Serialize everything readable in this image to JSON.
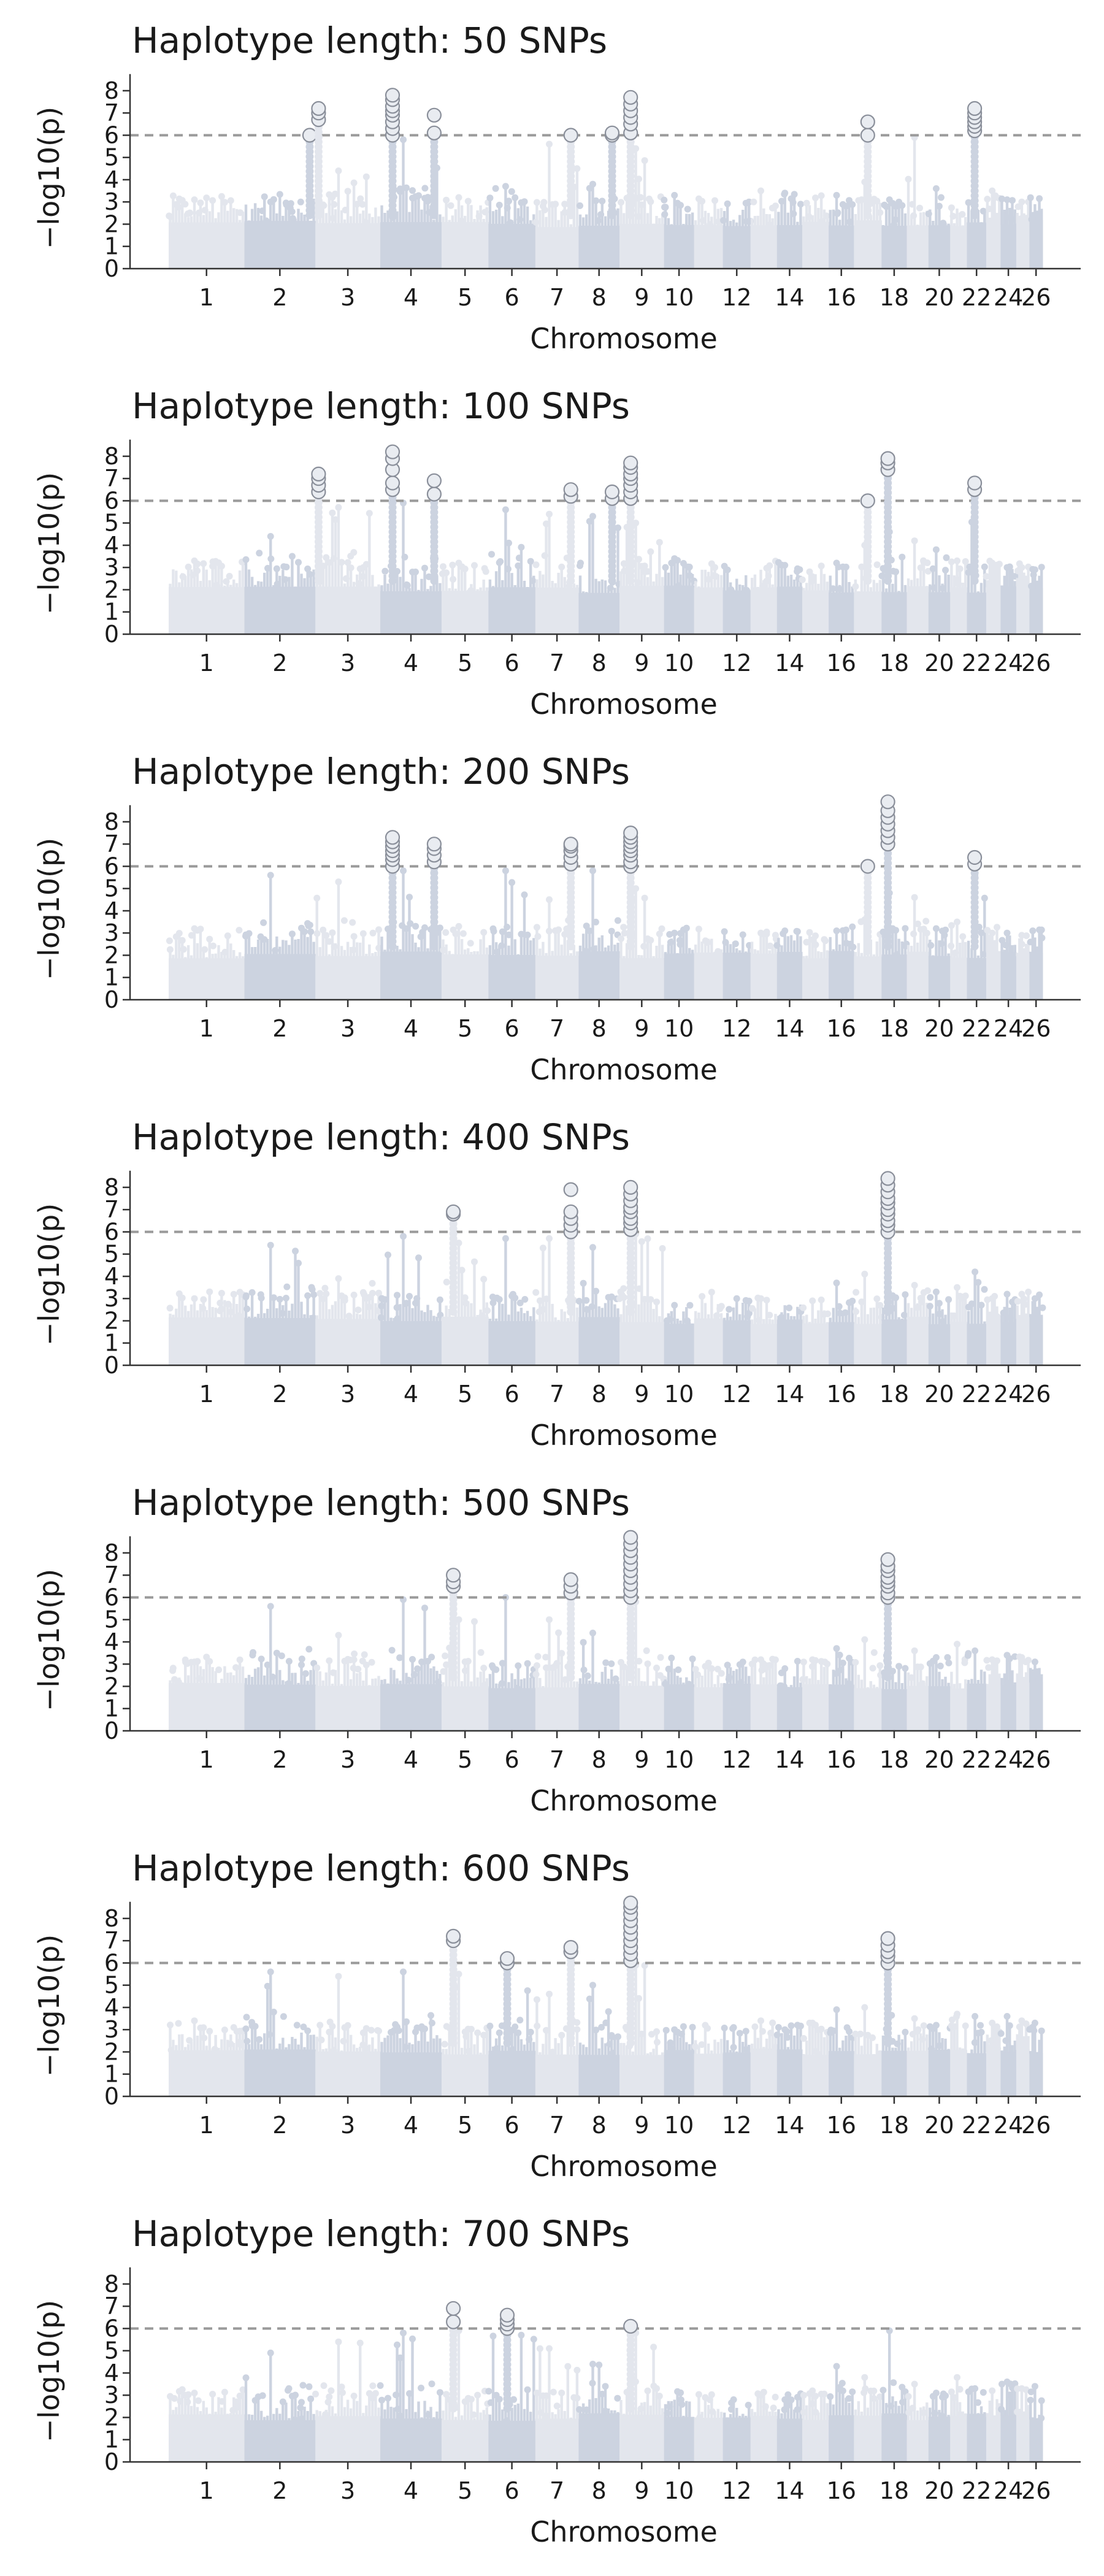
{
  "figure": {
    "colors": {
      "chrom_odd": "#e3e6ed",
      "chrom_even": "#ccd3e0",
      "threshold": "#9a9a9a",
      "hit_fill": "#e9ecf1",
      "hit_stroke": "#8a8f9a",
      "axis": "#333333",
      "text": "#1a1a1a"
    }
  },
  "chart_data": [
    {
      "type": "scatter",
      "title": "Haplotype length: 50 SNPs",
      "xlabel": "Chromosome",
      "ylabel": "−log10(p)",
      "ylim": [
        0,
        9
      ],
      "yticks": [
        0,
        1,
        2,
        3,
        4,
        5,
        6,
        7,
        8
      ],
      "threshold": 6,
      "chromosome_tick_labels": [
        "1",
        "2",
        "3",
        "4",
        "5",
        "6",
        "7",
        "8",
        "9",
        "10",
        "12",
        "14",
        "16",
        "18",
        "20",
        "22",
        "24",
        "26"
      ],
      "background_peaks": [
        3.1,
        3.0,
        4.4,
        5.8,
        3.2,
        3.7,
        5.6,
        3.8,
        5.4,
        3.3,
        2.6,
        2.2,
        3.5,
        3.4,
        2.4,
        3.3,
        3.9,
        3.1,
        5.9,
        3.6,
        2.7,
        3.1,
        3.5,
        3.1,
        3.0,
        2.9
      ],
      "significant_hits": [
        {
          "chr": 2,
          "pos": 0.92,
          "values": [
            6.0
          ]
        },
        {
          "chr": 3,
          "pos": 0.05,
          "values": [
            6.7,
            7.0,
            7.2
          ]
        },
        {
          "chr": 4,
          "pos": 0.2,
          "values": [
            6.0,
            6.3,
            6.6,
            6.9,
            7.1,
            7.3,
            7.6,
            7.8
          ]
        },
        {
          "chr": 4,
          "pos": 0.88,
          "values": [
            6.1,
            6.9
          ]
        },
        {
          "chr": 7,
          "pos": 0.82,
          "values": [
            6.0
          ]
        },
        {
          "chr": 8,
          "pos": 0.82,
          "values": [
            6.0,
            6.1
          ]
        },
        {
          "chr": 9,
          "pos": 0.25,
          "values": [
            6.1,
            6.5,
            6.8,
            7.1,
            7.4,
            7.7
          ]
        },
        {
          "chr": 17,
          "pos": 0.5,
          "values": [
            6.0,
            6.6
          ]
        },
        {
          "chr": 22,
          "pos": 0.4,
          "values": [
            6.2,
            6.4,
            6.6,
            6.8,
            7.0,
            7.2
          ]
        }
      ]
    },
    {
      "type": "scatter",
      "title": "Haplotype length: 100 SNPs",
      "xlabel": "Chromosome",
      "ylabel": "−log10(p)",
      "ylim": [
        0,
        9
      ],
      "yticks": [
        0,
        1,
        2,
        3,
        4,
        5,
        6,
        7,
        8
      ],
      "threshold": 6,
      "chromosome_tick_labels": [
        "1",
        "2",
        "3",
        "4",
        "5",
        "6",
        "7",
        "8",
        "9",
        "10",
        "12",
        "14",
        "16",
        "18",
        "20",
        "22",
        "24",
        "26"
      ],
      "background_peaks": [
        3.3,
        4.4,
        5.7,
        5.9,
        3.2,
        5.6,
        5.4,
        5.3,
        5.0,
        3.4,
        2.9,
        2.0,
        2.9,
        3.1,
        2.6,
        3.2,
        4.0,
        4.6,
        4.2,
        3.8,
        3.3,
        5.9,
        3.2,
        3.0,
        3.0,
        2.9
      ],
      "significant_hits": [
        {
          "chr": 3,
          "pos": 0.05,
          "values": [
            6.4,
            6.7,
            7.0,
            7.2
          ]
        },
        {
          "chr": 4,
          "pos": 0.2,
          "values": [
            6.5,
            6.8,
            7.4,
            7.9,
            8.2
          ]
        },
        {
          "chr": 4,
          "pos": 0.88,
          "values": [
            6.3,
            6.9
          ]
        },
        {
          "chr": 7,
          "pos": 0.82,
          "values": [
            6.2,
            6.5
          ]
        },
        {
          "chr": 8,
          "pos": 0.82,
          "values": [
            6.1,
            6.4
          ]
        },
        {
          "chr": 9,
          "pos": 0.25,
          "values": [
            6.1,
            6.4,
            6.7,
            7.0,
            7.2,
            7.5,
            7.7
          ]
        },
        {
          "chr": 17,
          "pos": 0.5,
          "values": [
            6.0
          ]
        },
        {
          "chr": 18,
          "pos": 0.25,
          "values": [
            7.4,
            7.7,
            7.9
          ]
        },
        {
          "chr": 22,
          "pos": 0.4,
          "values": [
            6.5,
            6.8
          ]
        }
      ]
    },
    {
      "type": "scatter",
      "title": "Haplotype length: 200 SNPs",
      "xlabel": "Chromosome",
      "ylabel": "−log10(p)",
      "ylim": [
        0,
        9
      ],
      "yticks": [
        0,
        1,
        2,
        3,
        4,
        5,
        6,
        7,
        8
      ],
      "threshold": 6,
      "chromosome_tick_labels": [
        "1",
        "2",
        "3",
        "4",
        "5",
        "6",
        "7",
        "8",
        "9",
        "10",
        "12",
        "14",
        "16",
        "18",
        "20",
        "22",
        "24",
        "26"
      ],
      "background_peaks": [
        3.2,
        5.6,
        5.3,
        5.8,
        3.3,
        5.8,
        4.5,
        5.8,
        5.0,
        3.0,
        2.8,
        2.6,
        3.0,
        3.1,
        2.7,
        3.1,
        3.6,
        4.8,
        4.6,
        3.2,
        3.5,
        5.6,
        3.0,
        3.0,
        2.9,
        2.8
      ],
      "significant_hits": [
        {
          "chr": 4,
          "pos": 0.2,
          "values": [
            6.0,
            6.3,
            6.5,
            6.7,
            6.9,
            7.1,
            7.3
          ]
        },
        {
          "chr": 4,
          "pos": 0.88,
          "values": [
            6.2,
            6.5,
            6.8,
            7.0
          ]
        },
        {
          "chr": 7,
          "pos": 0.82,
          "values": [
            6.1,
            6.4,
            6.7,
            6.9,
            7.0
          ]
        },
        {
          "chr": 9,
          "pos": 0.25,
          "values": [
            6.0,
            6.2,
            6.5,
            6.7,
            6.9,
            7.1,
            7.3,
            7.5
          ]
        },
        {
          "chr": 17,
          "pos": 0.5,
          "values": [
            6.0
          ]
        },
        {
          "chr": 18,
          "pos": 0.25,
          "values": [
            7.0,
            7.3,
            7.6,
            7.9,
            8.2,
            8.5,
            8.9
          ]
        },
        {
          "chr": 22,
          "pos": 0.4,
          "values": [
            6.1,
            6.4
          ]
        }
      ]
    },
    {
      "type": "scatter",
      "title": "Haplotype length: 400 SNPs",
      "xlabel": "Chromosome",
      "ylabel": "−log10(p)",
      "ylim": [
        0,
        9
      ],
      "yticks": [
        0,
        1,
        2,
        3,
        4,
        5,
        6,
        7,
        8
      ],
      "threshold": 6,
      "chromosome_tick_labels": [
        "1",
        "2",
        "3",
        "4",
        "5",
        "6",
        "7",
        "8",
        "9",
        "10",
        "12",
        "14",
        "16",
        "18",
        "20",
        "22",
        "24",
        "26"
      ],
      "background_peaks": [
        3.0,
        5.4,
        3.9,
        5.8,
        5.5,
        5.7,
        5.7,
        5.3,
        5.9,
        2.7,
        2.8,
        2.6,
        3.0,
        2.7,
        2.9,
        3.7,
        4.1,
        5.9,
        3.6,
        3.3,
        3.5,
        4.2,
        3.0,
        3.2,
        3.2,
        3.0
      ],
      "significant_hits": [
        {
          "chr": 5,
          "pos": 0.25,
          "values": [
            6.8,
            6.9
          ]
        },
        {
          "chr": 7,
          "pos": 0.82,
          "values": [
            6.0,
            6.3,
            6.6,
            6.9,
            7.9
          ]
        },
        {
          "chr": 9,
          "pos": 0.25,
          "values": [
            6.1,
            6.4,
            6.6,
            6.9,
            7.1,
            7.4,
            7.7,
            8.0
          ]
        },
        {
          "chr": 18,
          "pos": 0.25,
          "values": [
            6.0,
            6.3,
            6.5,
            6.8,
            7.0,
            7.3,
            7.5,
            7.8,
            8.1,
            8.4
          ]
        }
      ]
    },
    {
      "type": "scatter",
      "title": "Haplotype length: 500 SNPs",
      "xlabel": "Chromosome",
      "ylabel": "−log10(p)",
      "ylim": [
        0,
        9
      ],
      "yticks": [
        0,
        1,
        2,
        3,
        4,
        5,
        6,
        7,
        8
      ],
      "threshold": 6,
      "chromosome_tick_labels": [
        "1",
        "2",
        "3",
        "4",
        "5",
        "6",
        "7",
        "8",
        "9",
        "10",
        "12",
        "14",
        "16",
        "18",
        "20",
        "22",
        "24",
        "26"
      ],
      "background_peaks": [
        3.1,
        5.6,
        4.3,
        5.9,
        5.0,
        6.0,
        5.0,
        4.4,
        5.8,
        2.8,
        2.9,
        2.7,
        3.2,
        2.8,
        3.2,
        3.7,
        4.1,
        5.9,
        3.6,
        3.3,
        3.9,
        3.6,
        3.2,
        3.4,
        3.3,
        3.1
      ],
      "significant_hits": [
        {
          "chr": 5,
          "pos": 0.25,
          "values": [
            6.5,
            6.7,
            7.0
          ]
        },
        {
          "chr": 7,
          "pos": 0.82,
          "values": [
            6.2,
            6.5,
            6.8
          ]
        },
        {
          "chr": 9,
          "pos": 0.25,
          "values": [
            6.0,
            6.3,
            6.6,
            6.9,
            7.2,
            7.5,
            7.8,
            8.1,
            8.4,
            8.7
          ]
        },
        {
          "chr": 18,
          "pos": 0.25,
          "values": [
            6.0,
            6.2,
            6.5,
            6.7,
            6.9,
            7.2,
            7.4,
            7.7
          ]
        }
      ]
    },
    {
      "type": "scatter",
      "title": "Haplotype length: 600 SNPs",
      "xlabel": "Chromosome",
      "ylabel": "−log10(p)",
      "ylim": [
        0,
        9
      ],
      "yticks": [
        0,
        1,
        2,
        3,
        4,
        5,
        6,
        7,
        8
      ],
      "threshold": 6,
      "chromosome_tick_labels": [
        "1",
        "2",
        "3",
        "4",
        "5",
        "6",
        "7",
        "8",
        "9",
        "10",
        "12",
        "14",
        "16",
        "18",
        "20",
        "22",
        "24",
        "26"
      ],
      "background_peaks": [
        3.4,
        5.6,
        5.4,
        5.6,
        5.5,
        5.9,
        4.6,
        5.0,
        5.9,
        3.0,
        3.2,
        3.1,
        3.4,
        3.0,
        3.3,
        3.9,
        4.0,
        5.9,
        3.5,
        3.2,
        3.7,
        3.6,
        3.3,
        3.6,
        3.4,
        3.3
      ],
      "significant_hits": [
        {
          "chr": 5,
          "pos": 0.25,
          "values": [
            7.0,
            7.2
          ]
        },
        {
          "chr": 6,
          "pos": 0.4,
          "values": [
            6.0,
            6.2
          ]
        },
        {
          "chr": 7,
          "pos": 0.82,
          "values": [
            6.5,
            6.7
          ]
        },
        {
          "chr": 9,
          "pos": 0.25,
          "values": [
            6.1,
            6.4,
            6.7,
            7.0,
            7.3,
            7.6,
            7.9,
            8.2,
            8.5,
            8.7
          ]
        },
        {
          "chr": 18,
          "pos": 0.25,
          "values": [
            6.0,
            6.3,
            6.5,
            6.8,
            7.1
          ]
        }
      ]
    },
    {
      "type": "scatter",
      "title": "Haplotype length: 700 SNPs",
      "xlabel": "Chromosome",
      "ylabel": "−log10(p)",
      "ylim": [
        0,
        9
      ],
      "yticks": [
        0,
        1,
        2,
        3,
        4,
        5,
        6,
        7,
        8
      ],
      "threshold": 6,
      "chromosome_tick_labels": [
        "1",
        "2",
        "3",
        "4",
        "5",
        "6",
        "7",
        "8",
        "9",
        "10",
        "12",
        "14",
        "16",
        "18",
        "20",
        "22",
        "24",
        "26"
      ],
      "background_peaks": [
        3.1,
        4.9,
        5.4,
        5.8,
        5.9,
        5.9,
        5.1,
        4.4,
        5.8,
        2.8,
        2.9,
        2.8,
        3.0,
        2.8,
        3.2,
        4.3,
        3.8,
        5.9,
        3.5,
        3.1,
        3.8,
        3.3,
        3.2,
        3.6,
        3.3,
        3.4
      ],
      "significant_hits": [
        {
          "chr": 5,
          "pos": 0.25,
          "values": [
            6.3,
            6.9
          ]
        },
        {
          "chr": 6,
          "pos": 0.4,
          "values": [
            6.0,
            6.2,
            6.4,
            6.6
          ]
        },
        {
          "chr": 9,
          "pos": 0.25,
          "values": [
            6.1
          ]
        }
      ]
    }
  ]
}
